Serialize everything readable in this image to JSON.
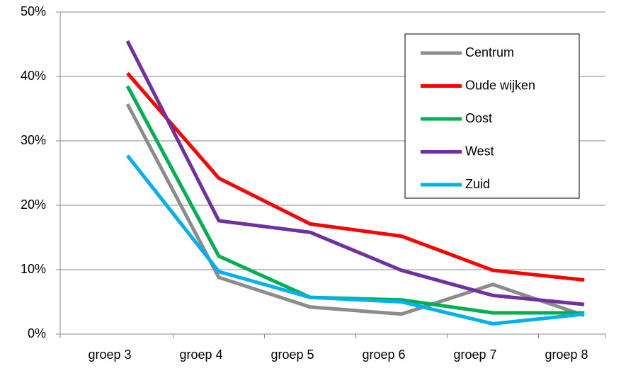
{
  "chart_data": {
    "type": "line",
    "categories": [
      "groep 3",
      "groep 4",
      "groep 5",
      "groep 6",
      "groep 7",
      "groep 8"
    ],
    "series": [
      {
        "name": "Centrum",
        "color": "#8c8c8c",
        "values": [
          35.7,
          8.8,
          4.2,
          3.1,
          7.7,
          2.9
        ]
      },
      {
        "name": "Oude wijken",
        "color": "#ff0000",
        "values": [
          40.5,
          24.2,
          17.1,
          15.2,
          9.9,
          8.4
        ]
      },
      {
        "name": "Oost",
        "color": "#00b050",
        "values": [
          38.5,
          12.1,
          5.7,
          5.3,
          3.3,
          3.3
        ]
      },
      {
        "name": "West",
        "color": "#7030a0",
        "values": [
          45.5,
          17.6,
          15.8,
          9.9,
          6.0,
          4.6
        ]
      },
      {
        "name": "Zuid",
        "color": "#00b0f0",
        "values": [
          27.7,
          9.7,
          5.7,
          5.0,
          1.6,
          3.1
        ]
      }
    ],
    "ylim": [
      0,
      50
    ],
    "yticks": [
      {
        "value": 0,
        "label": "0%"
      },
      {
        "value": 10,
        "label": "10%"
      },
      {
        "value": 20,
        "label": "20%"
      },
      {
        "value": 30,
        "label": "30%"
      },
      {
        "value": 40,
        "label": "40%"
      },
      {
        "value": 50,
        "label": "50%"
      }
    ],
    "grid": true,
    "legend": "upper right"
  }
}
